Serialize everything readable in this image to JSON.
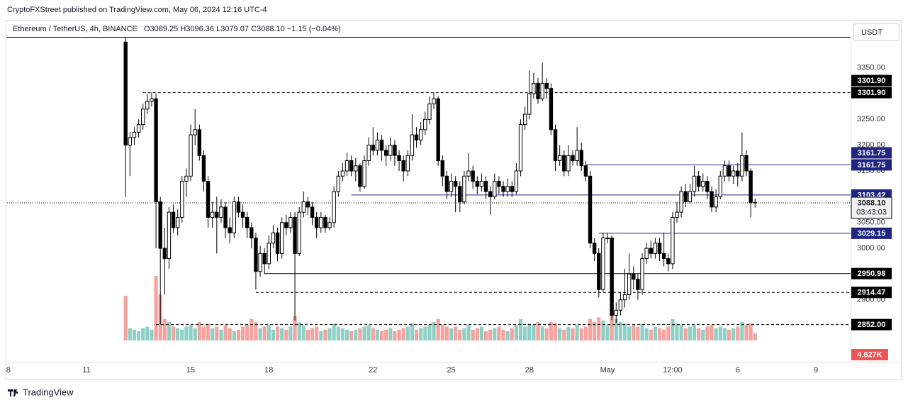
{
  "header": "CryptoFXStreet published on TradingView.com, May 06, 2024 12:16 UTC-4",
  "footer": "TradingView",
  "currency_button": "USDT",
  "chart_data": {
    "type": "candlestick",
    "legend": {
      "symbol": "Ethereum / TetherUS, 4h, BINANCE",
      "letters": [
        "O",
        "H",
        "L",
        "C"
      ],
      "change": {
        "value": -1.15,
        "label": "−1.15"
      },
      "change_pct": {
        "value": -0.04,
        "label": "(−0.04%)"
      }
    },
    "up_color": "#ffffff",
    "down_color": "#000000",
    "outline_color": "#000000",
    "up_volume_color": "#8fd0c6",
    "down_volume_color": "#f4a39e",
    "grid": false,
    "xlim": [
      -18.3,
      176
    ],
    "xticks": [
      {
        "value": -18,
        "label": "8"
      },
      {
        "value": 0,
        "label": "11"
      },
      {
        "value": 24,
        "label": "15"
      },
      {
        "value": 42,
        "label": "18"
      },
      {
        "value": 66,
        "label": "22"
      },
      {
        "value": 84,
        "label": "25"
      },
      {
        "value": 102,
        "label": "28"
      },
      {
        "value": 120,
        "label": "May"
      },
      {
        "value": 135,
        "label": "12:00"
      },
      {
        "value": 150,
        "label": "6"
      },
      {
        "value": 168,
        "label": "9"
      }
    ],
    "ylim": [
      2780,
      3410
    ],
    "yticks": [
      {
        "value": 3350,
        "label": "3350.00"
      },
      {
        "value": 3250,
        "label": "3250.00"
      },
      {
        "value": 3200,
        "label": "3200.00"
      },
      {
        "value": 3150,
        "label": "3150.00"
      },
      {
        "value": 3050,
        "label": "3050.00"
      },
      {
        "value": 3000,
        "label": "3000.00"
      },
      {
        "value": 2900,
        "label": "2900.00"
      }
    ],
    "volume_lim": [
      0,
      60
    ],
    "x": [
      9,
      10,
      11,
      12,
      13,
      14,
      15,
      16,
      17,
      18,
      19,
      20,
      21,
      22,
      23,
      24,
      25,
      26,
      27,
      28,
      29,
      30,
      31,
      32,
      33,
      34,
      35,
      36,
      37,
      38,
      39,
      40,
      41,
      42,
      43,
      44,
      45,
      46,
      47,
      48,
      49,
      50,
      51,
      52,
      53,
      54,
      55,
      56,
      57,
      58,
      59,
      60,
      61,
      62,
      63,
      64,
      65,
      66,
      67,
      68,
      69,
      70,
      71,
      72,
      73,
      74,
      75,
      76,
      77,
      78,
      79,
      80,
      81,
      82,
      83,
      84,
      85,
      86,
      87,
      88,
      89,
      90,
      91,
      92,
      93,
      94,
      95,
      96,
      97,
      98,
      99,
      100,
      101,
      102,
      103,
      104,
      105,
      106,
      107,
      108,
      109,
      110,
      111,
      112,
      113,
      114,
      115,
      116,
      117,
      118,
      119,
      120,
      121,
      122,
      123,
      124,
      125,
      126,
      127,
      128,
      129,
      130,
      131,
      132,
      133,
      134,
      135,
      136,
      137,
      138,
      139,
      140,
      141,
      142,
      143,
      144,
      145,
      146,
      147,
      148,
      149,
      150,
      151,
      152,
      153,
      154
    ],
    "open": [
      3400,
      3200,
      3215,
      3225,
      3240,
      3270,
      3285,
      3290,
      3090,
      3000,
      2980,
      3070,
      3040,
      3060,
      3130,
      3140,
      3220,
      3230,
      3180,
      3130,
      3060,
      3070,
      3060,
      3080,
      3040,
      3030,
      3090,
      3070,
      3060,
      3040,
      3020,
      2955,
      2990,
      2970,
      3010,
      3030,
      2990,
      3050,
      3040,
      3060,
      2990,
      3070,
      3090,
      3080,
      3060,
      3040,
      3060,
      3040,
      3050,
      3110,
      3140,
      3150,
      3170,
      3150,
      3160,
      3120,
      3170,
      3200,
      3190,
      3210,
      3190,
      3180,
      3200,
      3180,
      3170,
      3150,
      3180,
      3220,
      3210,
      3230,
      3250,
      3280,
      3290,
      3170,
      3140,
      3110,
      3130,
      3120,
      3090,
      3140,
      3150,
      3130,
      3120,
      3130,
      3110,
      3100,
      3130,
      3120,
      3110,
      3120,
      3110,
      3150,
      3240,
      3260,
      3300,
      3320,
      3290,
      3320,
      3310,
      3230,
      3170,
      3180,
      3150,
      3180,
      3170,
      3190,
      3160,
      3140,
      3010,
      2990,
      2920,
      3020,
      3020,
      2870,
      2880,
      2900,
      2910,
      2950,
      2940,
      2920,
      2980,
      3000,
      2990,
      3010,
      2990,
      2980,
      2970,
      3060,
      3070,
      3110,
      3090,
      3110,
      3140,
      3120,
      3130,
      3110,
      3080,
      3100,
      3140,
      3160,
      3140,
      3150,
      3140,
      3180,
      3150,
      3089.25
    ],
    "high": [
      3420,
      3225,
      3235,
      3250,
      3280,
      3300,
      3302,
      3300,
      3100,
      3040,
      3080,
      3085,
      3075,
      3140,
      3155,
      3240,
      3270,
      3240,
      3190,
      3140,
      3090,
      3100,
      3095,
      3090,
      3060,
      3100,
      3100,
      3085,
      3070,
      3050,
      3030,
      3005,
      3000,
      3025,
      3045,
      3040,
      3060,
      3065,
      3070,
      3070,
      3080,
      3110,
      3100,
      3090,
      3070,
      3070,
      3065,
      3060,
      3120,
      3150,
      3165,
      3185,
      3180,
      3175,
      3165,
      3180,
      3215,
      3235,
      3225,
      3220,
      3200,
      3215,
      3210,
      3190,
      3180,
      3190,
      3260,
      3235,
      3245,
      3265,
      3295,
      3302,
      3295,
      3180,
      3150,
      3145,
      3140,
      3130,
      3150,
      3185,
      3160,
      3140,
      3145,
      3140,
      3120,
      3145,
      3140,
      3130,
      3135,
      3130,
      3165,
      3250,
      3275,
      3345,
      3340,
      3330,
      3360,
      3330,
      3320,
      3240,
      3200,
      3190,
      3200,
      3190,
      3235,
      3205,
      3170,
      3150,
      3020,
      3000,
      3030,
      3030,
      3025,
      2895,
      2915,
      2960,
      2990,
      2965,
      2950,
      2990,
      3010,
      3015,
      3020,
      3020,
      3030,
      2990,
      3070,
      3090,
      3120,
      3125,
      3125,
      3160,
      3150,
      3145,
      3140,
      3120,
      3115,
      3150,
      3170,
      3170,
      3160,
      3165,
      3225,
      3190,
      3155,
      3096.36
    ],
    "low": [
      3100,
      3140,
      3200,
      3215,
      3230,
      3260,
      3275,
      3000,
      2852,
      2910,
      2960,
      3030,
      3025,
      3050,
      3100,
      3130,
      3200,
      3170,
      3110,
      3040,
      3040,
      2990,
      3050,
      3020,
      3010,
      3020,
      3060,
      3040,
      3020,
      3000,
      2920,
      2945,
      2950,
      2960,
      3000,
      2975,
      2980,
      3025,
      3030,
      2860,
      2985,
      3060,
      3065,
      3045,
      3020,
      3030,
      3030,
      3035,
      3040,
      3100,
      3130,
      3140,
      3140,
      3130,
      3110,
      3115,
      3160,
      3180,
      3180,
      3170,
      3160,
      3170,
      3160,
      3150,
      3130,
      3140,
      3170,
      3195,
      3200,
      3220,
      3240,
      3270,
      3160,
      3120,
      3095,
      3100,
      3070,
      3070,
      3085,
      3130,
      3115,
      3105,
      3110,
      3095,
      3065,
      3095,
      3105,
      3100,
      3100,
      3100,
      3105,
      3140,
      3230,
      3250,
      3290,
      3280,
      3285,
      3290,
      3220,
      3150,
      3160,
      3140,
      3140,
      3160,
      3160,
      3150,
      3130,
      3000,
      2975,
      2905,
      2915,
      3010,
      2860,
      2855,
      2870,
      2885,
      2900,
      2920,
      2900,
      2910,
      2970,
      2980,
      2980,
      2975,
      2965,
      2955,
      2960,
      3050,
      3060,
      3080,
      3085,
      3100,
      3110,
      3110,
      3095,
      3070,
      3070,
      3095,
      3130,
      3130,
      3125,
      3120,
      3130,
      3140,
      3060,
      3079.07
    ],
    "close": [
      3200,
      3215,
      3225,
      3240,
      3270,
      3285,
      3290,
      3090,
      3000,
      2980,
      3070,
      3040,
      3060,
      3130,
      3140,
      3220,
      3230,
      3180,
      3130,
      3060,
      3070,
      3060,
      3080,
      3040,
      3030,
      3090,
      3070,
      3060,
      3040,
      3020,
      2955,
      2990,
      2970,
      3010,
      3030,
      2990,
      3050,
      3040,
      3060,
      2990,
      3070,
      3090,
      3080,
      3060,
      3040,
      3060,
      3040,
      3050,
      3110,
      3140,
      3150,
      3170,
      3150,
      3160,
      3120,
      3170,
      3200,
      3190,
      3210,
      3190,
      3180,
      3200,
      3180,
      3170,
      3150,
      3180,
      3220,
      3210,
      3230,
      3250,
      3280,
      3290,
      3170,
      3140,
      3110,
      3130,
      3120,
      3090,
      3140,
      3150,
      3130,
      3120,
      3130,
      3110,
      3100,
      3130,
      3120,
      3110,
      3120,
      3110,
      3150,
      3240,
      3260,
      3300,
      3320,
      3290,
      3320,
      3310,
      3230,
      3170,
      3180,
      3150,
      3180,
      3170,
      3190,
      3160,
      3140,
      3010,
      2990,
      2920,
      3020,
      3020,
      2870,
      2880,
      2900,
      2910,
      2950,
      2940,
      2920,
      2980,
      3000,
      2990,
      3010,
      2990,
      2980,
      2970,
      3060,
      3070,
      3110,
      3090,
      3110,
      3140,
      3120,
      3130,
      3110,
      3080,
      3100,
      3140,
      3160,
      3140,
      3150,
      3140,
      3180,
      3150,
      3089.25,
      3088.1
    ],
    "volume": [
      29,
      8,
      7,
      6,
      8,
      9,
      7,
      42,
      30,
      14,
      12,
      9,
      8,
      7,
      9,
      10,
      8,
      12,
      9,
      11,
      8,
      9,
      7,
      10,
      8,
      6,
      7,
      9,
      10,
      14,
      12,
      8,
      9,
      10,
      7,
      9,
      8,
      7,
      9,
      16,
      12,
      10,
      7,
      8,
      9,
      6,
      7,
      8,
      11,
      9,
      8,
      7,
      6,
      7,
      8,
      9,
      10,
      8,
      7,
      6,
      7,
      8,
      6,
      7,
      8,
      9,
      11,
      7,
      8,
      9,
      10,
      12,
      14,
      10,
      9,
      8,
      9,
      7,
      8,
      10,
      7,
      8,
      9,
      6,
      7,
      8,
      9,
      7,
      6,
      8,
      10,
      14,
      9,
      11,
      10,
      12,
      9,
      8,
      12,
      11,
      8,
      7,
      9,
      8,
      10,
      8,
      9,
      14,
      12,
      15,
      13,
      10,
      17,
      14,
      12,
      11,
      9,
      10,
      9,
      11,
      8,
      7,
      9,
      8,
      7,
      9,
      14,
      11,
      10,
      8,
      9,
      10,
      8,
      7,
      9,
      10,
      8,
      9,
      8,
      7,
      8,
      9,
      12,
      10,
      11,
      4.627
    ],
    "volume_label": {
      "value": 4.627,
      "label": "4.627K"
    },
    "last_price": {
      "value": 3088.1,
      "label": "3088.10"
    },
    "countdown": "03:43:03",
    "levels": [
      {
        "value": 3301.9,
        "labels": [
          "3301.90",
          "3301.90"
        ],
        "from": 13,
        "style": "dashed",
        "color": "#000000"
      },
      {
        "value": 3161.75,
        "labels": [
          "3161.75",
          "3161.75"
        ],
        "from": 115,
        "style": "solid",
        "color": "#1f2580"
      },
      {
        "value": 3103.42,
        "labels": [
          "3103.42"
        ],
        "from": 61,
        "style": "solid",
        "color": "#1f2580"
      },
      {
        "value": 3029.15,
        "labels": [
          "3029.15"
        ],
        "from": 118,
        "style": "solid",
        "color": "#1f2580"
      },
      {
        "value": 2950.98,
        "labels": [
          "2950.98"
        ],
        "from": 41,
        "style": "solid",
        "color": "#000000"
      },
      {
        "value": 2914.47,
        "labels": [
          "2914.47"
        ],
        "from": 39,
        "style": "dashed",
        "color": "#000000"
      },
      {
        "value": 2852,
        "labels": [
          "2852.00"
        ],
        "from": 16,
        "style": "dashed",
        "color": "#000000"
      }
    ]
  }
}
